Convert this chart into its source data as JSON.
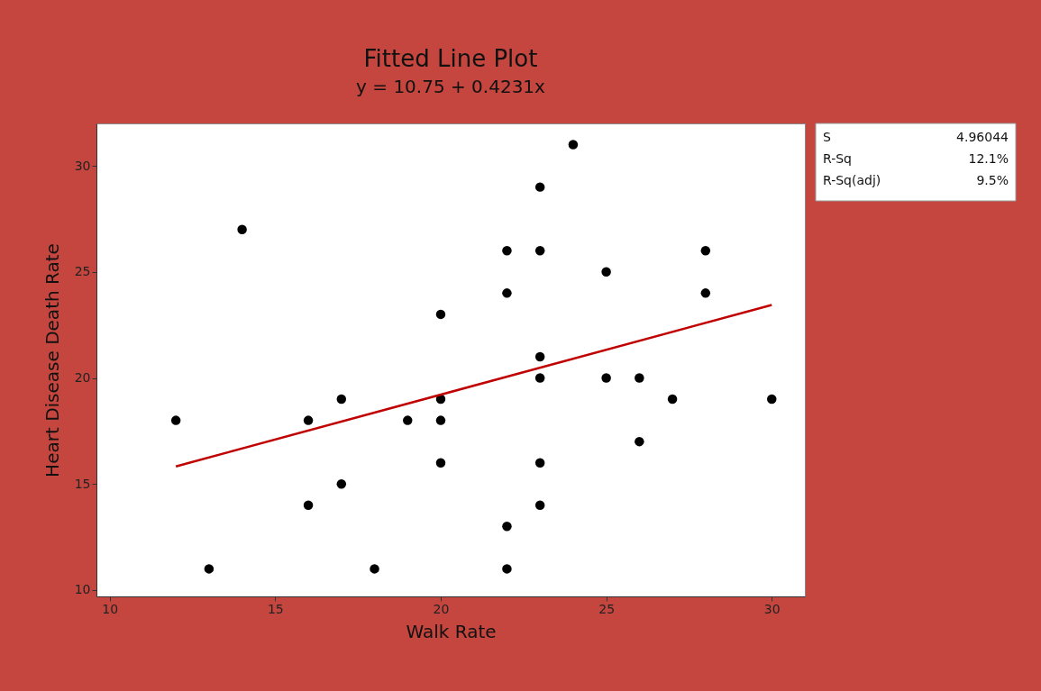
{
  "chart_data": {
    "type": "scatter",
    "title": "Fitted Line Plot",
    "subtitle": "y = 10.75 + 0.4231x",
    "xlabel": "Walk Rate",
    "ylabel": "Heart Disease Death Rate",
    "xlim": [
      9.6,
      31.0
    ],
    "ylim": [
      9.7,
      32
    ],
    "xticks": [
      10,
      15,
      20,
      25,
      30
    ],
    "yticks": [
      10,
      15,
      20,
      25,
      30
    ],
    "grid": false,
    "series": [
      {
        "marker": "circle",
        "color": "#000000",
        "x": [
          12,
          13,
          14,
          16,
          16,
          17,
          17,
          18,
          19,
          20,
          20,
          20,
          20,
          22,
          22,
          22,
          22,
          23,
          23,
          23,
          23,
          23,
          23,
          24,
          25,
          25,
          26,
          26,
          27,
          28,
          28,
          30
        ],
        "values": [
          18,
          11,
          27,
          18,
          14,
          19,
          15,
          11,
          18,
          23,
          19,
          18,
          16,
          26,
          24,
          13,
          11,
          29,
          26,
          21,
          20,
          16,
          14,
          31,
          25,
          20,
          20,
          17,
          19,
          26,
          24,
          19
        ]
      },
      {
        "type": "line",
        "color": "#c00000",
        "line_style": "solid",
        "x": [
          12,
          30
        ],
        "values": [
          15.83,
          23.44
        ]
      }
    ],
    "annotations": [
      "S 4.96044",
      "R-Sq 12.1%",
      "R-Sq(adj) 9.5%"
    ]
  }
}
